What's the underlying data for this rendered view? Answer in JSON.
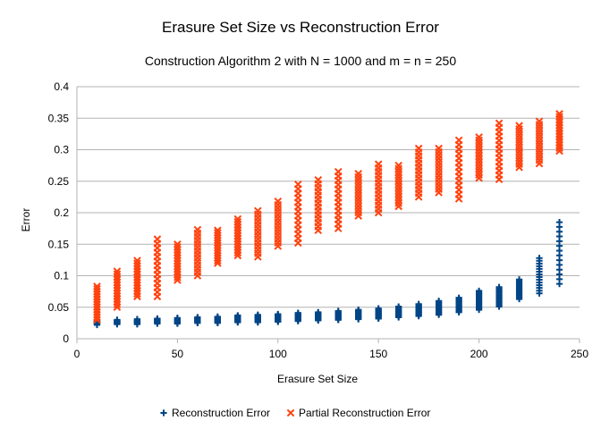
{
  "chart_data": {
    "type": "scatter",
    "title": "Erasure Set Size vs Reconstruction Error",
    "subtitle": "Construction Algorithm 2 with N = 1000 and m = n = 250",
    "xlabel": "Erasure Set Size",
    "ylabel": "Error",
    "xlim": [
      0,
      250
    ],
    "ylim": [
      0,
      0.4
    ],
    "x_ticks": [
      0,
      50,
      100,
      150,
      200,
      250
    ],
    "y_ticks": [
      0,
      0.05,
      0.1,
      0.15,
      0.2,
      0.25,
      0.3,
      0.35,
      0.4
    ],
    "x_tick_labels": [
      "0",
      "50",
      "100",
      "150",
      "200",
      "250"
    ],
    "y_tick_labels": [
      "0",
      "0.05",
      "0.1",
      "0.15",
      "0.2",
      "0.25",
      "0.3",
      "0.35",
      "0.4"
    ],
    "grid": "horizontal",
    "legend_position": "bottom",
    "series": [
      {
        "name": "Reconstruction Error",
        "marker": "plus",
        "color": "#004586",
        "points": [
          {
            "x": 10,
            "min": 0.022,
            "max": 0.03
          },
          {
            "x": 20,
            "min": 0.023,
            "max": 0.03
          },
          {
            "x": 30,
            "min": 0.023,
            "max": 0.031
          },
          {
            "x": 40,
            "min": 0.024,
            "max": 0.032
          },
          {
            "x": 50,
            "min": 0.024,
            "max": 0.033
          },
          {
            "x": 60,
            "min": 0.025,
            "max": 0.034
          },
          {
            "x": 70,
            "min": 0.025,
            "max": 0.035
          },
          {
            "x": 80,
            "min": 0.026,
            "max": 0.037
          },
          {
            "x": 90,
            "min": 0.026,
            "max": 0.038
          },
          {
            "x": 100,
            "min": 0.027,
            "max": 0.039
          },
          {
            "x": 110,
            "min": 0.028,
            "max": 0.041
          },
          {
            "x": 120,
            "min": 0.029,
            "max": 0.042
          },
          {
            "x": 130,
            "min": 0.03,
            "max": 0.044
          },
          {
            "x": 140,
            "min": 0.031,
            "max": 0.046
          },
          {
            "x": 150,
            "min": 0.032,
            "max": 0.048
          },
          {
            "x": 160,
            "min": 0.034,
            "max": 0.051
          },
          {
            "x": 170,
            "min": 0.036,
            "max": 0.055
          },
          {
            "x": 180,
            "min": 0.038,
            "max": 0.06
          },
          {
            "x": 190,
            "min": 0.042,
            "max": 0.065
          },
          {
            "x": 200,
            "min": 0.046,
            "max": 0.076
          },
          {
            "x": 210,
            "min": 0.051,
            "max": 0.082
          },
          {
            "x": 220,
            "min": 0.063,
            "max": 0.094
          },
          {
            "x": 230,
            "min": 0.072,
            "max": 0.128
          },
          {
            "x": 240,
            "min": 0.087,
            "max": 0.185
          }
        ]
      },
      {
        "name": "Partial Reconstruction Error",
        "marker": "x",
        "color": "#ff420e",
        "points": [
          {
            "x": 10,
            "min": 0.03,
            "max": 0.083
          },
          {
            "x": 20,
            "min": 0.05,
            "max": 0.107
          },
          {
            "x": 30,
            "min": 0.067,
            "max": 0.124
          },
          {
            "x": 40,
            "min": 0.067,
            "max": 0.158
          },
          {
            "x": 50,
            "min": 0.093,
            "max": 0.15
          },
          {
            "x": 60,
            "min": 0.1,
            "max": 0.173
          },
          {
            "x": 70,
            "min": 0.12,
            "max": 0.172
          },
          {
            "x": 80,
            "min": 0.132,
            "max": 0.19
          },
          {
            "x": 90,
            "min": 0.13,
            "max": 0.203
          },
          {
            "x": 100,
            "min": 0.147,
            "max": 0.218
          },
          {
            "x": 110,
            "min": 0.152,
            "max": 0.245
          },
          {
            "x": 120,
            "min": 0.172,
            "max": 0.252
          },
          {
            "x": 130,
            "min": 0.175,
            "max": 0.265
          },
          {
            "x": 140,
            "min": 0.195,
            "max": 0.262
          },
          {
            "x": 150,
            "min": 0.2,
            "max": 0.277
          },
          {
            "x": 160,
            "min": 0.21,
            "max": 0.275
          },
          {
            "x": 170,
            "min": 0.225,
            "max": 0.302
          },
          {
            "x": 180,
            "min": 0.232,
            "max": 0.302
          },
          {
            "x": 190,
            "min": 0.222,
            "max": 0.315
          },
          {
            "x": 200,
            "min": 0.255,
            "max": 0.32
          },
          {
            "x": 210,
            "min": 0.253,
            "max": 0.342
          },
          {
            "x": 220,
            "min": 0.272,
            "max": 0.338
          },
          {
            "x": 230,
            "min": 0.278,
            "max": 0.345
          },
          {
            "x": 240,
            "min": 0.298,
            "max": 0.357
          }
        ]
      }
    ]
  }
}
